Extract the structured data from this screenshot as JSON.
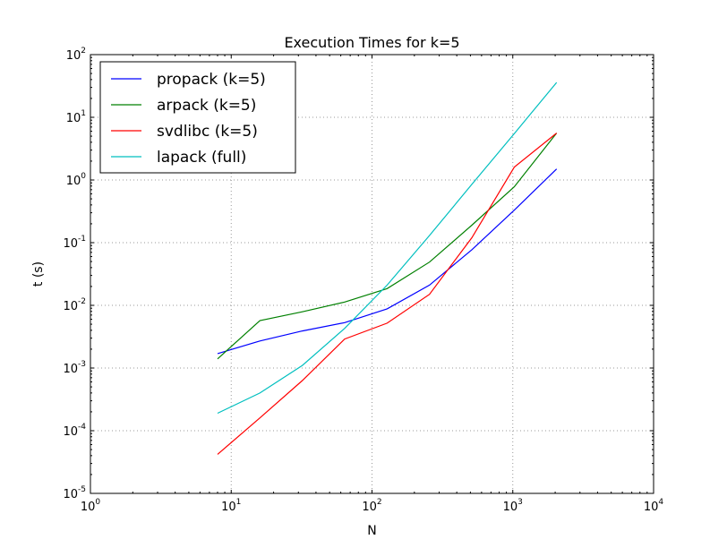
{
  "chart_data": {
    "type": "line",
    "title": "Execution Times for k=5",
    "xlabel": "N",
    "ylabel": "t (s)",
    "xscale": "log",
    "yscale": "log",
    "xlim": [
      1,
      10000
    ],
    "ylim": [
      1e-05,
      100
    ],
    "grid": true,
    "legend_position": "top-left",
    "xticks": [
      {
        "value": 1,
        "base": "10",
        "exp": "0"
      },
      {
        "value": 10,
        "base": "10",
        "exp": "1"
      },
      {
        "value": 100,
        "base": "10",
        "exp": "2"
      },
      {
        "value": 1000,
        "base": "10",
        "exp": "3"
      },
      {
        "value": 10000,
        "base": "10",
        "exp": "4"
      }
    ],
    "yticks": [
      {
        "value": 1e-05,
        "base": "10",
        "exp": "-5"
      },
      {
        "value": 0.0001,
        "base": "10",
        "exp": "-4"
      },
      {
        "value": 0.001,
        "base": "10",
        "exp": "-3"
      },
      {
        "value": 0.01,
        "base": "10",
        "exp": "-2"
      },
      {
        "value": 0.1,
        "base": "10",
        "exp": "-1"
      },
      {
        "value": 1,
        "base": "10",
        "exp": "0"
      },
      {
        "value": 10,
        "base": "10",
        "exp": "1"
      },
      {
        "value": 100,
        "base": "10",
        "exp": "2"
      }
    ],
    "x": [
      8,
      16,
      32,
      64,
      128,
      256,
      512,
      1024,
      2048
    ],
    "series": [
      {
        "name": "propack (k=5)",
        "color": "#0000ff",
        "values": [
          0.0017,
          0.0027,
          0.0039,
          0.0053,
          0.0088,
          0.021,
          0.077,
          0.33,
          1.5
        ]
      },
      {
        "name": "arpack (k=5)",
        "color": "#008000",
        "values": [
          0.0014,
          0.0057,
          0.0079,
          0.0113,
          0.0185,
          0.049,
          0.19,
          0.78,
          5.6
        ]
      },
      {
        "name": "svdlibc (k=5)",
        "color": "#ff0000",
        "values": [
          4.2e-05,
          0.00016,
          0.00063,
          0.0029,
          0.0052,
          0.015,
          0.12,
          1.6,
          5.6
        ]
      },
      {
        "name": "lapack (full)",
        "color": "#00bfbf",
        "values": [
          0.00019,
          0.0004,
          0.0011,
          0.0043,
          0.021,
          0.13,
          0.85,
          5.5,
          36
        ]
      }
    ]
  }
}
